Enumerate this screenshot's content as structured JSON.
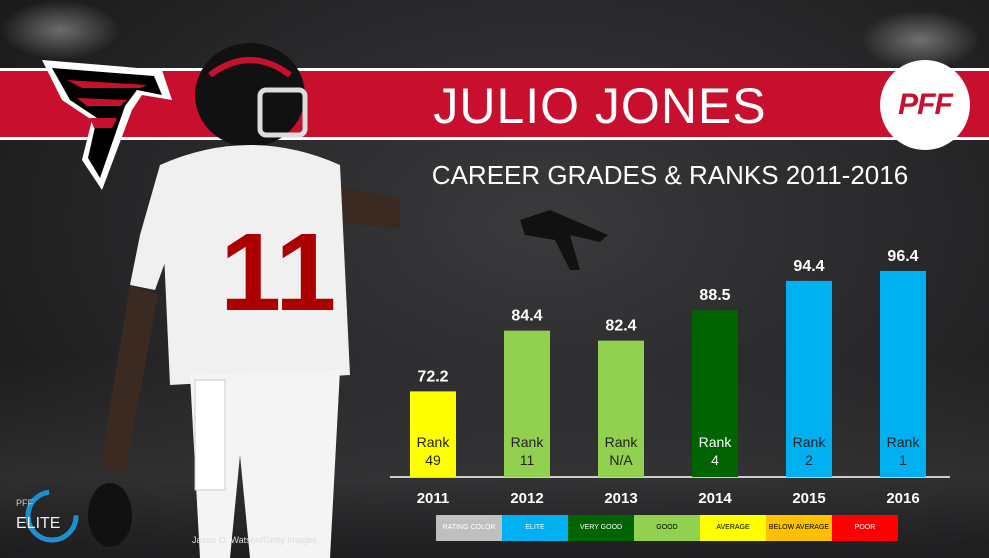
{
  "header": {
    "title": "JULIO JONES",
    "pff_logo": "PFF"
  },
  "credit": "Jason O. Watson/Getty Images",
  "elite_badge": {
    "small": "PFF",
    "big": "ELITE"
  },
  "chart_data": {
    "type": "bar",
    "title": "CAREER GRADES & RANKS 2011-2016",
    "categories": [
      "2011",
      "2012",
      "2013",
      "2014",
      "2015",
      "2016"
    ],
    "values": [
      72.2,
      84.4,
      82.4,
      88.5,
      94.4,
      96.4
    ],
    "value_labels": [
      "72.2",
      "84.4",
      "82.4",
      "88.5",
      "94.4",
      "96.4"
    ],
    "ranks": [
      "49",
      "11",
      "N/A",
      "4",
      "2",
      "1"
    ],
    "rank_word": "Rank",
    "bar_colors": [
      "#ffff00",
      "#92d050",
      "#92d050",
      "#006400",
      "#00b0f0",
      "#00b0f0"
    ],
    "ylim": [
      0,
      100
    ],
    "grid": false,
    "legend_position": "bottom",
    "legend": [
      {
        "label": "RATING COLOR",
        "color": "#bfbfbf",
        "text_color": "#ffffff"
      },
      {
        "label": "ELITE",
        "color": "#00b0f0",
        "text_color": "#ffffff"
      },
      {
        "label": "VERY GOOD",
        "color": "#006400",
        "text_color": "#ffffff"
      },
      {
        "label": "GOOD",
        "color": "#92d050",
        "text_color": "#000000"
      },
      {
        "label": "AVERAGE",
        "color": "#ffff00",
        "text_color": "#000000"
      },
      {
        "label": "BELOW AVERAGE",
        "color": "#ffc000",
        "text_color": "#000000"
      },
      {
        "label": "POOR",
        "color": "#ff0000",
        "text_color": "#ffffff"
      }
    ]
  }
}
